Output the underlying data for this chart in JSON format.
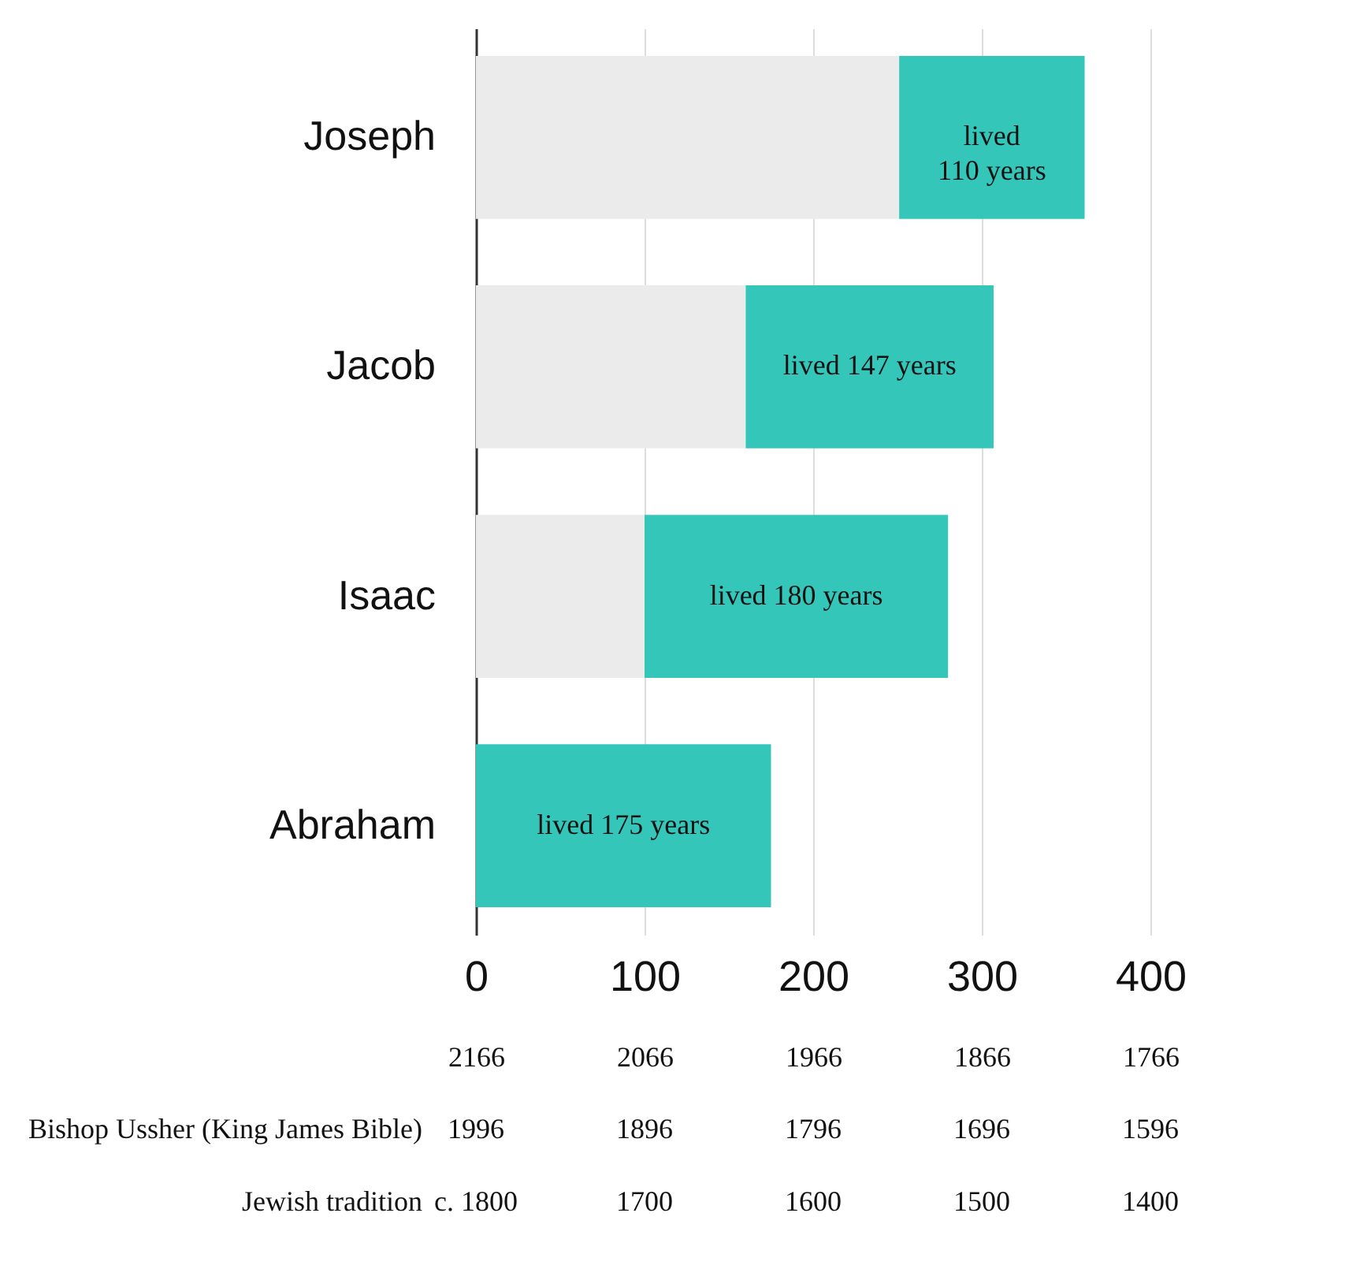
{
  "chart_data": {
    "type": "bar",
    "orientation": "horizontal",
    "stacked": true,
    "grid": "x",
    "categories": [
      "Joseph",
      "Jacob",
      "Isaac",
      "Abraham"
    ],
    "series": [
      {
        "color": "#ebebeb",
        "values": [
          251,
          160,
          100,
          0
        ]
      },
      {
        "color": "#33c6b9",
        "values": [
          110,
          147,
          180,
          175
        ],
        "value_labels": [
          "lived 110 years",
          "lived 147 years",
          "lived 180 years",
          "lived 175 years"
        ]
      }
    ],
    "xlim": [
      0,
      400
    ],
    "xticks": [
      0,
      100,
      200,
      300,
      400
    ],
    "x2lim": [
      2166,
      1766
    ],
    "x2ticks": [
      2166,
      2066,
      1966,
      1866,
      1766
    ],
    "annotations": [
      "Bishop Ussher (King James Bible)",
      "1996",
      "1896",
      "1796",
      "1696",
      "1596",
      "Jewish tradition",
      "c. 1800",
      "1700",
      "1600",
      "1500",
      "1400"
    ]
  }
}
